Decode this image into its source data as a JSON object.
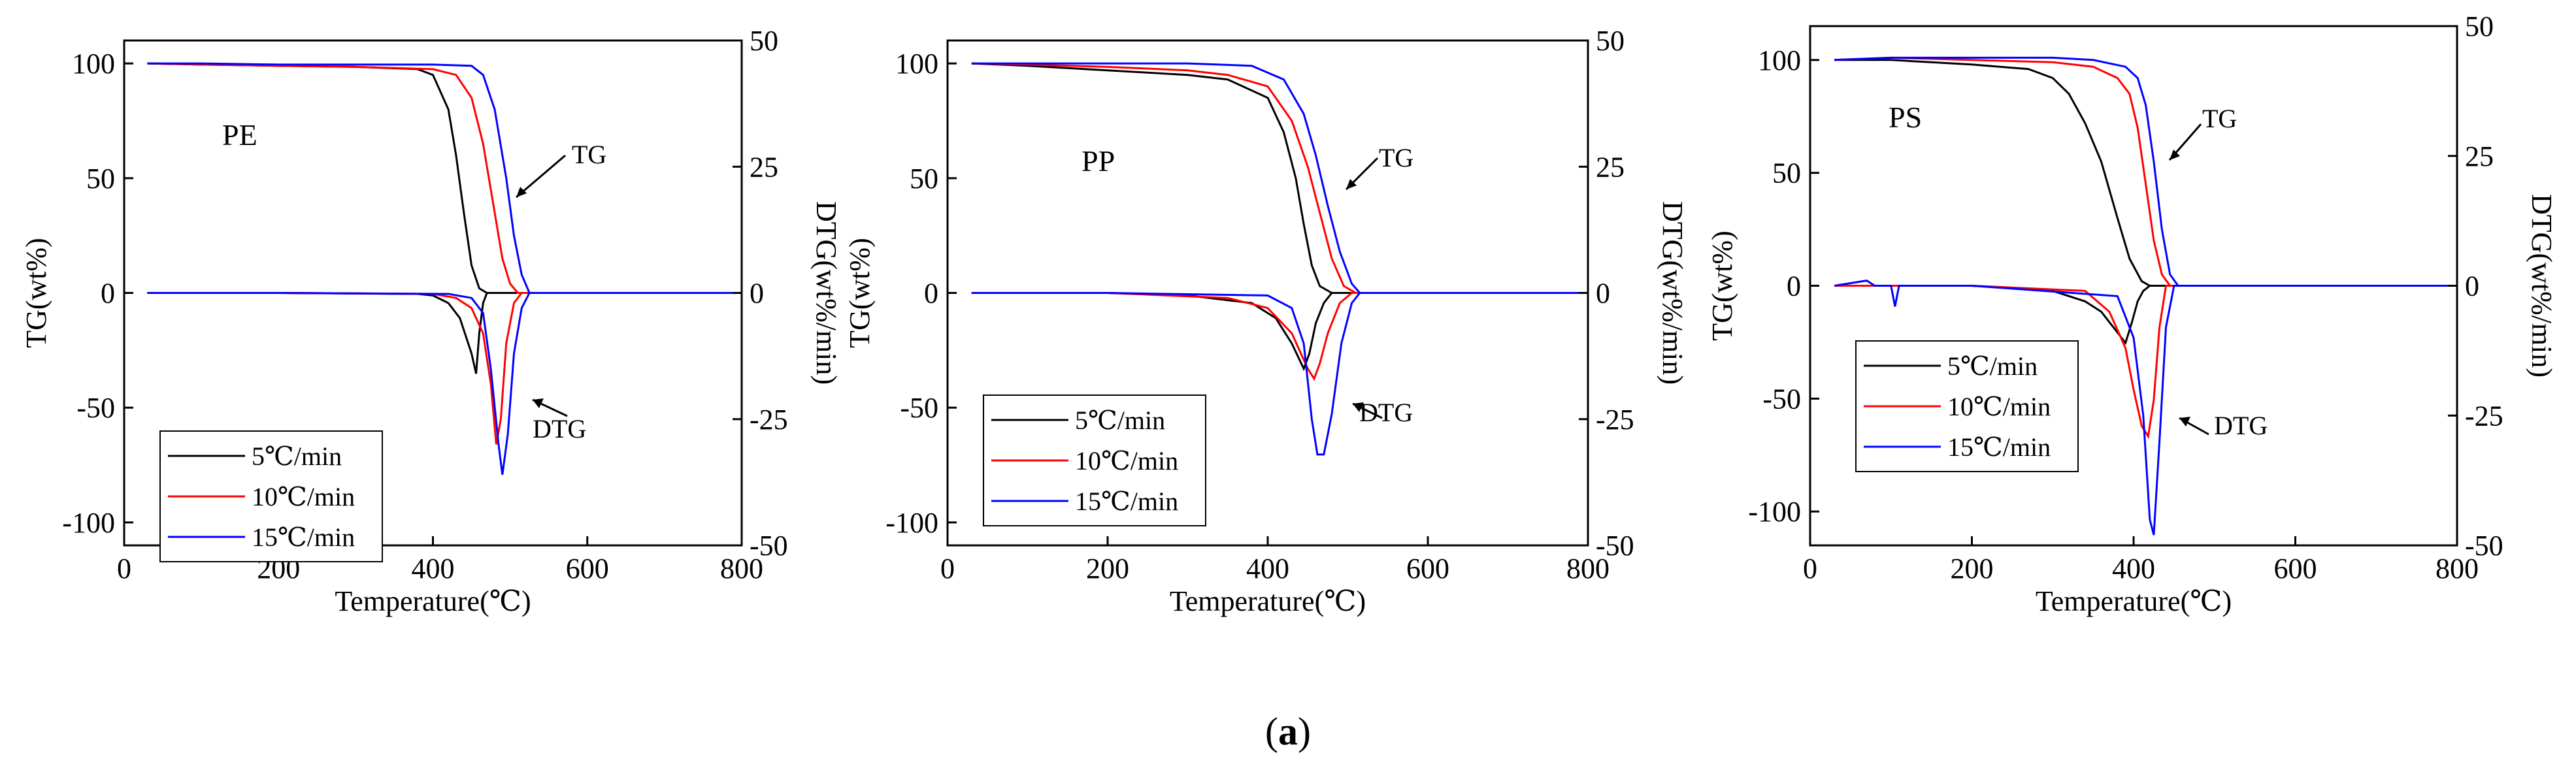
{
  "caption": {
    "prefix": "(",
    "letter": "a",
    "suffix": ")"
  },
  "chart_data": [
    {
      "type": "line",
      "label": "PE",
      "xlabel": "Temperature(℃)",
      "ylabel": "TG(wt%)",
      "y2label": "DTG(wt%/min)",
      "xlim": [
        0,
        800
      ],
      "ylim": [
        -110,
        110
      ],
      "y2lim": [
        -50,
        50
      ],
      "xticks": [
        0,
        200,
        400,
        600,
        800
      ],
      "yticks": [
        100,
        50,
        0,
        -50,
        -100
      ],
      "y2ticks": [
        50,
        25,
        0,
        -25,
        -50
      ],
      "annotations": {
        "tg": "TG",
        "dtg": "DTG"
      },
      "series": [
        {
          "name": "5℃/min",
          "color": "#000000",
          "tg": {
            "x": [
              30,
              100,
              200,
              300,
              380,
              400,
              420,
              430,
              440,
              450,
              460,
              470,
              800
            ],
            "y": [
              100,
              99.5,
              99,
              98.5,
              97.5,
              95,
              80,
              60,
              35,
              12,
              2,
              0,
              0
            ]
          },
          "dtg": {
            "x": [
              30,
              200,
              380,
              400,
              420,
              435,
              450,
              456,
              460,
              465,
              470,
              800
            ],
            "y": [
              0,
              0,
              -0.2,
              -0.5,
              -2,
              -5,
              -12,
              -16,
              -8,
              -2,
              0,
              0
            ]
          }
        },
        {
          "name": "10℃/min",
          "color": "#ff0000",
          "tg": {
            "x": [
              30,
              100,
              200,
              300,
              400,
              430,
              450,
              465,
              480,
              490,
              500,
              510,
              800
            ],
            "y": [
              100,
              99.5,
              99,
              98.5,
              97.5,
              95,
              85,
              65,
              35,
              15,
              4,
              0,
              0
            ]
          },
          "dtg": {
            "x": [
              30,
              200,
              400,
              430,
              450,
              465,
              475,
              482,
              488,
              495,
              505,
              515,
              800
            ],
            "y": [
              0,
              0,
              -0.2,
              -1,
              -3,
              -8,
              -18,
              -30,
              -25,
              -10,
              -2,
              0,
              0
            ]
          }
        },
        {
          "name": "15℃/min",
          "color": "#0000ff",
          "tg": {
            "x": [
              30,
              100,
              200,
              300,
              400,
              450,
              465,
              480,
              495,
              505,
              515,
              525,
              800
            ],
            "y": [
              100,
              100,
              99.5,
              99.5,
              99.5,
              99,
              95,
              80,
              50,
              25,
              8,
              0,
              0
            ]
          },
          "dtg": {
            "x": [
              30,
              200,
              420,
              450,
              465,
              475,
              485,
              490,
              497,
              505,
              515,
              525,
              800
            ],
            "y": [
              0,
              0,
              -0.2,
              -1,
              -4,
              -15,
              -30,
              -36,
              -28,
              -12,
              -3,
              0,
              0
            ]
          }
        }
      ]
    },
    {
      "type": "line",
      "label": "PP",
      "xlabel": "Temperature(℃)",
      "ylabel": "TG(wt%)",
      "y2label": "DTG(wt%/min)",
      "xlim": [
        0,
        800
      ],
      "ylim": [
        -110,
        110
      ],
      "y2lim": [
        -50,
        50
      ],
      "xticks": [
        0,
        200,
        400,
        600,
        800
      ],
      "yticks": [
        100,
        50,
        0,
        -50,
        -100
      ],
      "y2ticks": [
        50,
        25,
        0,
        -25,
        -50
      ],
      "annotations": {
        "tg": "TG",
        "dtg": "DTG"
      },
      "series": [
        {
          "name": "5℃/min",
          "color": "#000000",
          "tg": {
            "x": [
              30,
              100,
              200,
              300,
              350,
              400,
              420,
              435,
              445,
              455,
              465,
              480,
              800
            ],
            "y": [
              100,
              99,
              97,
              95,
              93,
              85,
              70,
              50,
              30,
              12,
              3,
              0,
              0
            ]
          },
          "dtg": {
            "x": [
              30,
              200,
              300,
              380,
              410,
              430,
              445,
              452,
              460,
              470,
              480,
              800
            ],
            "y": [
              0,
              0,
              -0.5,
              -2,
              -5,
              -10,
              -15,
              -12,
              -6,
              -2,
              0,
              0
            ]
          }
        },
        {
          "name": "10℃/min",
          "color": "#ff0000",
          "tg": {
            "x": [
              30,
              100,
              200,
              300,
              350,
              400,
              430,
              450,
              465,
              480,
              495,
              510,
              800
            ],
            "y": [
              100,
              99.5,
              98.5,
              97,
              95,
              90,
              75,
              55,
              35,
              15,
              3,
              0,
              0
            ]
          },
          "dtg": {
            "x": [
              30,
              200,
              350,
              400,
              430,
              450,
              458,
              465,
              475,
              490,
              505,
              800
            ],
            "y": [
              0,
              0,
              -1,
              -3,
              -8,
              -15,
              -17,
              -14,
              -8,
              -2,
              0,
              0
            ]
          }
        },
        {
          "name": "15℃/min",
          "color": "#0000ff",
          "tg": {
            "x": [
              30,
              100,
              200,
              300,
              380,
              420,
              445,
              460,
              475,
              490,
              505,
              515,
              800
            ],
            "y": [
              100,
              100,
              100,
              100,
              99,
              93,
              78,
              60,
              38,
              18,
              4,
              0,
              0
            ]
          },
          "dtg": {
            "x": [
              30,
              200,
              400,
              430,
              445,
              455,
              462,
              470,
              480,
              492,
              505,
              515,
              800
            ],
            "y": [
              0,
              0,
              -0.5,
              -3,
              -10,
              -25,
              -32,
              -32,
              -24,
              -10,
              -2,
              0,
              0
            ]
          }
        }
      ]
    },
    {
      "type": "line",
      "label": "PS",
      "xlabel": "Temperature(℃)",
      "ylabel": "TG(wt%)",
      "y2label": "DTG(wt%/min)",
      "xlim": [
        0,
        800
      ],
      "ylim": [
        -115,
        115
      ],
      "y2lim": [
        -50,
        50
      ],
      "xticks": [
        0,
        200,
        400,
        600,
        800
      ],
      "yticks": [
        100,
        50,
        0,
        -50,
        -100
      ],
      "y2ticks": [
        50,
        25,
        0,
        -25,
        -50
      ],
      "annotations": {
        "tg": "TG",
        "dtg": "DTG"
      },
      "series": [
        {
          "name": "5℃/min",
          "color": "#000000",
          "tg": {
            "x": [
              30,
              100,
              200,
              270,
              300,
              320,
              340,
              360,
              380,
              395,
              410,
              420,
              800
            ],
            "y": [
              100,
              100,
              98,
              96,
              92,
              85,
              72,
              55,
              30,
              12,
              2,
              0,
              0
            ]
          },
          "dtg": {
            "x": [
              30,
              200,
              300,
              340,
              360,
              380,
              390,
              398,
              405,
              412,
              420,
              800
            ],
            "y": [
              0,
              0,
              -1,
              -3,
              -5,
              -9,
              -11,
              -7,
              -3,
              -1,
              0,
              0
            ]
          }
        },
        {
          "name": "10℃/min",
          "color": "#ff0000",
          "tg": {
            "x": [
              30,
              100,
              200,
              300,
              350,
              380,
              395,
              405,
              415,
              425,
              435,
              445,
              800
            ],
            "y": [
              100,
              101,
              100,
              99,
              97,
              92,
              85,
              70,
              45,
              20,
              5,
              0,
              0
            ]
          },
          "dtg": {
            "x": [
              30,
              200,
              340,
              370,
              390,
              400,
              410,
              418,
              425,
              432,
              440,
              800
            ],
            "y": [
              0,
              0,
              -1,
              -5,
              -12,
              -20,
              -27,
              -29,
              -22,
              -8,
              0,
              0
            ]
          }
        },
        {
          "name": "15℃/min",
          "color": "#0000ff",
          "tg": {
            "x": [
              30,
              100,
              200,
              300,
              350,
              390,
              405,
              415,
              425,
              435,
              445,
              455,
              800
            ],
            "y": [
              100,
              101,
              101,
              101,
              100,
              97,
              92,
              80,
              55,
              25,
              5,
              0,
              0
            ]
          },
          "dtg": {
            "x": [
              30,
              70,
              80,
              100,
              105,
              110,
              200,
              380,
              400,
              412,
              420,
              425,
              432,
              440,
              450,
              800
            ],
            "y": [
              0,
              1,
              0,
              0,
              -4,
              0,
              0,
              -2,
              -10,
              -25,
              -45,
              -48,
              -30,
              -8,
              0,
              0
            ]
          }
        }
      ]
    }
  ]
}
